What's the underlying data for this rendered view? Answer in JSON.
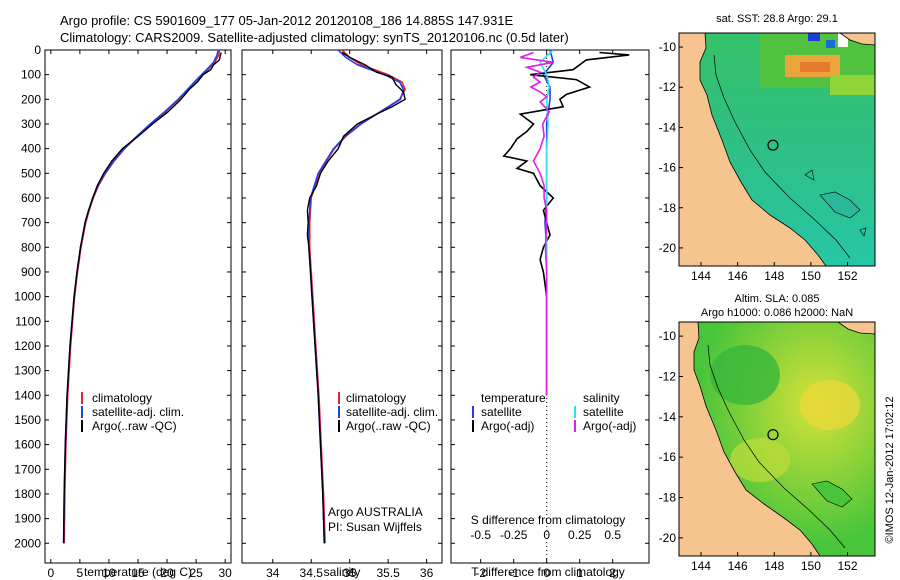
{
  "header": {
    "line1": "Argo profile: CS 5901609_177 05-Jan-2012 20120108_186 14.885S 147.931E",
    "line2": "Climatology: CARS2009. Satellite-adjusted climatology: synTS_20120106.nc (0.5d later)"
  },
  "colors": {
    "climatology": "#e8202a",
    "satellite": "#1f3ff0",
    "argo": "#000000",
    "salinity_satellite": "#27e2e8",
    "salinity_argo": "#e020e6",
    "land": "#f5c48f"
  },
  "chart_data": [
    {
      "type": "line",
      "xlabel": "temperature (deg C)",
      "ylabel": "",
      "xlim": [
        -1,
        31
      ],
      "ylim": [
        2080,
        0
      ],
      "x_ticks": [
        0,
        5,
        10,
        15,
        20,
        25,
        30
      ],
      "y_ticks": [
        0,
        100,
        200,
        300,
        400,
        500,
        600,
        700,
        800,
        900,
        1000,
        1100,
        1200,
        1300,
        1400,
        1500,
        1600,
        1700,
        1800,
        1900,
        2000
      ],
      "legend": [
        "climatology",
        "satellite-adj. clim.",
        "Argo(..raw -QC)"
      ],
      "legend_position": "lower-middle",
      "series": [
        {
          "name": "climatology",
          "depth": [
            0,
            20,
            50,
            80,
            120,
            160,
            200,
            250,
            300,
            350,
            400,
            450,
            500,
            550,
            600,
            650,
            700,
            800,
            900,
            1000,
            1200,
            1400,
            1600,
            1800,
            2000
          ],
          "values": [
            29.0,
            28.9,
            28.2,
            27.0,
            25.3,
            23.6,
            22.0,
            19.8,
            17.2,
            14.9,
            12.7,
            10.9,
            9.4,
            8.2,
            7.3,
            6.6,
            6.0,
            5.2,
            4.6,
            4.1,
            3.4,
            2.9,
            2.6,
            2.4,
            2.3
          ]
        },
        {
          "name": "satellite-adj. clim.",
          "depth": [
            0,
            20,
            50,
            80,
            120,
            160,
            200,
            250,
            300,
            350,
            400,
            450,
            500,
            550,
            600,
            650,
            700,
            800,
            900,
            1000,
            1200,
            1400,
            1600,
            1800,
            2000
          ],
          "values": [
            28.8,
            28.6,
            28.0,
            26.8,
            25.1,
            23.5,
            21.9,
            19.6,
            17.1,
            14.8,
            12.6,
            10.8,
            9.3,
            8.1,
            7.2,
            6.5,
            5.9,
            5.1,
            4.5,
            4.0,
            3.3,
            2.8,
            2.5,
            2.3,
            2.2
          ]
        },
        {
          "name": "Argo(..raw -QC)",
          "depth": [
            10,
            20,
            40,
            60,
            80,
            100,
            130,
            160,
            200,
            250,
            300,
            350,
            400,
            450,
            500,
            550,
            600,
            650,
            700,
            800,
            900,
            1000,
            1200,
            1400,
            1600,
            1800,
            2000
          ],
          "values": [
            29.3,
            29.2,
            29.0,
            28.0,
            27.5,
            26.2,
            25.2,
            23.8,
            22.4,
            20.2,
            17.5,
            15.0,
            12.3,
            10.5,
            9.1,
            8.0,
            7.2,
            6.5,
            5.9,
            5.1,
            4.5,
            4.0,
            3.3,
            2.8,
            2.5,
            2.3,
            2.2
          ]
        }
      ]
    },
    {
      "type": "line",
      "xlabel": "salinity",
      "ylabel": "",
      "xlim": [
        33.6,
        36.2
      ],
      "ylim": [
        2080,
        0
      ],
      "x_ticks": [
        34,
        34.5,
        35,
        35.5,
        36
      ],
      "legend": [
        "climatology",
        "satellite-adj. clim.",
        "Argo(..raw -QC)"
      ],
      "legend_position": "lower-right",
      "annotation": [
        "Argo AUSTRALIA",
        "PI: Susan Wijffels"
      ],
      "series": [
        {
          "name": "climatology",
          "depth": [
            0,
            30,
            60,
            100,
            130,
            160,
            200,
            250,
            300,
            350,
            400,
            450,
            500,
            550,
            600,
            700,
            800,
            900,
            1000,
            1200,
            1400,
            1600,
            1800,
            2000
          ],
          "values": [
            34.9,
            35.0,
            35.15,
            35.5,
            35.68,
            35.72,
            35.65,
            35.4,
            35.15,
            34.95,
            34.8,
            34.7,
            34.6,
            34.55,
            34.5,
            34.48,
            34.48,
            34.5,
            34.52,
            34.56,
            34.6,
            34.63,
            34.66,
            34.68
          ]
        },
        {
          "name": "satellite-adj. clim.",
          "depth": [
            0,
            30,
            60,
            100,
            130,
            160,
            200,
            250,
            300,
            350,
            400,
            450,
            500,
            550,
            600,
            700,
            800,
            900,
            1000,
            1200,
            1400,
            1600,
            1800,
            2000
          ],
          "values": [
            34.85,
            34.95,
            35.1,
            35.45,
            35.65,
            35.7,
            35.66,
            35.4,
            35.14,
            34.94,
            34.79,
            34.69,
            34.59,
            34.54,
            34.49,
            34.47,
            34.47,
            34.49,
            34.51,
            34.55,
            34.59,
            34.62,
            34.65,
            34.67
          ]
        },
        {
          "name": "Argo(..raw -QC)",
          "depth": [
            10,
            30,
            60,
            90,
            110,
            140,
            170,
            200,
            230,
            260,
            300,
            350,
            400,
            450,
            500,
            550,
            600,
            650,
            700,
            750,
            800,
            900,
            1000,
            1200,
            1400,
            1600,
            1800,
            2000
          ],
          "values": [
            34.9,
            35.0,
            35.2,
            35.35,
            35.55,
            35.6,
            35.7,
            35.72,
            35.55,
            35.35,
            35.1,
            34.92,
            34.85,
            34.72,
            34.62,
            34.57,
            34.48,
            34.45,
            34.46,
            34.45,
            34.47,
            34.49,
            34.51,
            34.55,
            34.59,
            34.62,
            34.65,
            34.67
          ]
        }
      ]
    },
    {
      "type": "line",
      "xlabel": "T difference from climatology",
      "x2label": "S difference from climatology",
      "xlim": [
        -2.9,
        3.1
      ],
      "x2lim": [
        -0.725,
        0.775
      ],
      "ylim": [
        2080,
        0
      ],
      "x_ticks": [
        -2,
        -1,
        0,
        1,
        2
      ],
      "x2_ticks": [
        -0.5,
        -0.25,
        0,
        0.25,
        0.5
      ],
      "x2_tick_labels": [
        "-0.5",
        "-0.25",
        "0",
        "0.25",
        "0.5"
      ],
      "zero_line": "dotted",
      "legend_titles": [
        "temperature",
        "salinity"
      ],
      "legend": [
        "satellite",
        "Argo(-adj)",
        "satellite",
        "Argo(-adj)"
      ],
      "legend_position": "lower",
      "series": [
        {
          "name": "temperature satellite",
          "depth": [
            0,
            50,
            100,
            150,
            200,
            300,
            400,
            500,
            600,
            700,
            800,
            900,
            1000,
            1200,
            1400
          ],
          "values": [
            0.1,
            0.2,
            -0.1,
            0.1,
            0.1,
            0.0,
            0.0,
            0.0,
            0.0,
            -0.05,
            0.0,
            0.0,
            0.0,
            0.0,
            0.0
          ]
        },
        {
          "name": "temperature Argo(-adj)",
          "depth": [
            10,
            20,
            40,
            60,
            80,
            100,
            120,
            150,
            180,
            200,
            230,
            260,
            300,
            330,
            360,
            400,
            430,
            450,
            480,
            500,
            550,
            600,
            650,
            700,
            750,
            800,
            850,
            900,
            1000,
            1100,
            1200,
            1300,
            1400
          ],
          "values": [
            1.6,
            2.5,
            1.2,
            1.0,
            0.8,
            -0.5,
            0.9,
            1.3,
            0.6,
            0.4,
            0.5,
            -0.8,
            -0.4,
            -0.6,
            -0.9,
            -1.1,
            -1.3,
            -0.6,
            -0.9,
            -0.4,
            -0.2,
            0.2,
            -0.1,
            0.0,
            0.1,
            -0.1,
            -0.2,
            -0.1,
            0.0,
            0.0,
            0.0,
            0.0,
            0.0
          ]
        },
        {
          "name": "salinity satellite",
          "depth": [
            0,
            50,
            100,
            150,
            200,
            300,
            400,
            500,
            600,
            700,
            800,
            900,
            1000,
            1200,
            1400
          ],
          "values": [
            0.05,
            -0.05,
            0.0,
            0.02,
            0.0,
            0.01,
            0.0,
            0.0,
            0.0,
            0.0,
            0.0,
            0.0,
            0.0,
            0.0,
            0.0
          ]
        },
        {
          "name": "salinity Argo(-adj)",
          "depth": [
            10,
            30,
            50,
            70,
            90,
            110,
            130,
            150,
            170,
            190,
            210,
            250,
            300,
            350,
            400,
            450,
            500,
            550,
            600,
            650,
            700,
            800,
            900,
            1000,
            1200,
            1400
          ],
          "values": [
            -0.1,
            -0.2,
            0.05,
            -0.15,
            -0.05,
            -0.1,
            -0.05,
            -0.12,
            -0.05,
            0.0,
            -0.05,
            0.02,
            -0.03,
            -0.02,
            -0.05,
            -0.1,
            -0.05,
            -0.02,
            -0.02,
            0.0,
            0.0,
            -0.01,
            0.0,
            0.0,
            0.0,
            0.0
          ]
        }
      ]
    },
    {
      "type": "heatmap",
      "title": "sat. SST: 28.8  Argo: 29.1",
      "x_ticks": [
        144,
        146,
        148,
        150,
        152
      ],
      "y_ticks": [
        -10,
        -12,
        -14,
        -16,
        -18,
        -20
      ],
      "xlim": [
        142.8,
        153.5
      ],
      "ylim": [
        -20.9,
        -9.3
      ],
      "marker": {
        "lon": 147.931,
        "lat": -14.885
      }
    },
    {
      "type": "heatmap",
      "title": [
        "Altim. SLA: 0.085",
        "Argo h1000: 0.086 h2000: NaN"
      ],
      "x_ticks": [
        144,
        146,
        148,
        150,
        152
      ],
      "y_ticks": [
        -10,
        -12,
        -14,
        -16,
        -18,
        -20
      ],
      "xlim": [
        142.8,
        153.5
      ],
      "ylim": [
        -20.9,
        -9.3
      ],
      "marker": {
        "lon": 147.931,
        "lat": -14.885
      }
    }
  ],
  "side_label": "©IMOS 12-Jan-2012 17:02:12"
}
